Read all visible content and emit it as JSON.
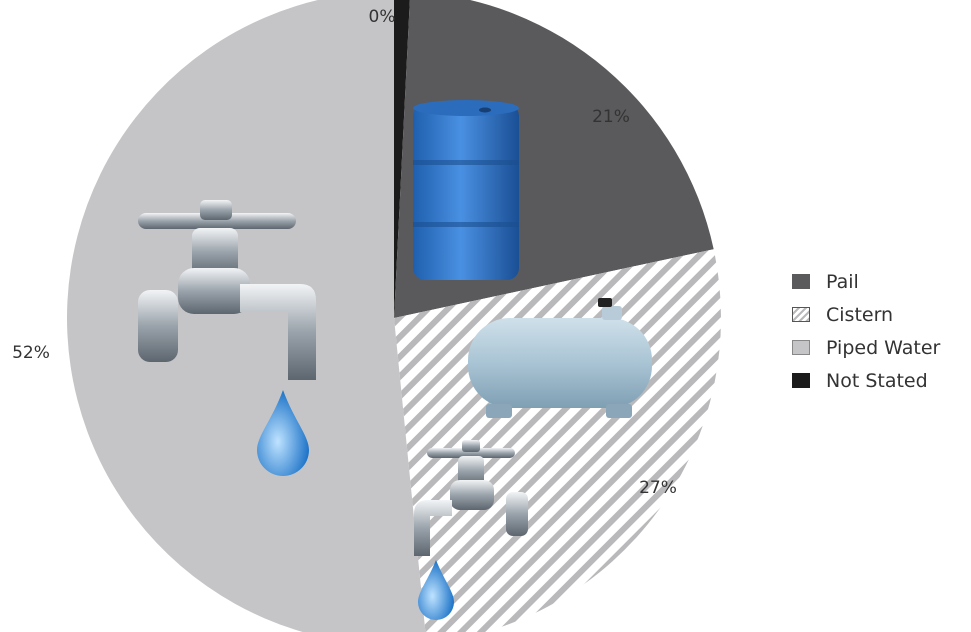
{
  "chart_data": {
    "type": "pie",
    "slices": [
      {
        "label": "Not Stated",
        "value": 0,
        "display": "0%",
        "color": "#1b1b1b"
      },
      {
        "label": "Pail",
        "value": 21,
        "display": "21%",
        "color": "#5a5a5c"
      },
      {
        "label": "Cistern",
        "value": 27,
        "display": "27%",
        "color": "#b9b9bb",
        "pattern": "diagonal-hatch"
      },
      {
        "label": "Piped Water",
        "value": 52,
        "display": "52%",
        "color": "#c5c5c7"
      }
    ],
    "legend": {
      "placement": "right",
      "entries": [
        "Pail",
        "Cistern",
        "Piped Water",
        "Not Stated"
      ]
    },
    "illustrations": [
      "barrel-icon",
      "water-tank-icon",
      "faucet-icon",
      "water-drop-icon"
    ]
  }
}
